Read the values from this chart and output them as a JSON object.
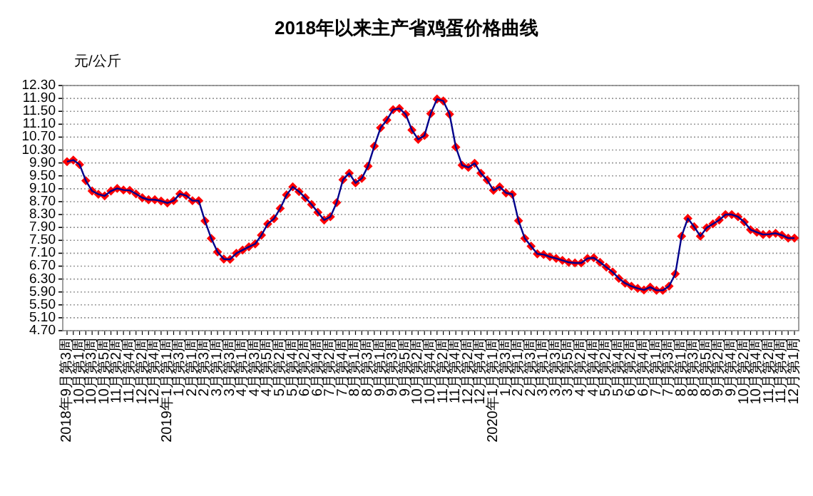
{
  "chart_data": {
    "type": "line",
    "title": "2018年以来主产省鸡蛋价格曲线",
    "ylabel": "元/公斤",
    "categories": [
      "2018年9月第3周",
      null,
      "10月第1周",
      null,
      "10月第3周",
      null,
      "10月第5周",
      null,
      "11月第2周",
      null,
      "11月第4周",
      null,
      "12月第2周",
      null,
      "12月第4周",
      null,
      "2019年1月第1周",
      null,
      "1月第3周",
      null,
      "2月第1周",
      null,
      "2月第3周",
      null,
      "3月第1周",
      null,
      "3月第3周",
      null,
      "4月第1周",
      null,
      "4月第3周",
      null,
      "4月第5周",
      null,
      "5月第2周",
      null,
      "5月第4周",
      null,
      "6月第2周",
      null,
      "6月第4周",
      null,
      "7月第2周",
      null,
      "7月第4周",
      null,
      "8月第1周",
      null,
      "8月第3周",
      null,
      "9月第1周",
      null,
      "9月第3周",
      null,
      "9月第5周",
      null,
      "10月第2周",
      null,
      "10月第4周",
      null,
      "11月第2周",
      null,
      "11月第4周",
      null,
      "12月第2周",
      null,
      "12月第4周",
      null,
      "2020年1月第1周",
      null,
      "1月第3周",
      null,
      "2月第1周",
      null,
      "2月第3周",
      null,
      "3月第1周",
      null,
      "3月第3周",
      null,
      "3月第5周",
      null,
      "4月第2周",
      null,
      "4月第4周",
      null,
      "5月第2周",
      null,
      "5月第4周",
      null,
      "6月第2周",
      null,
      "6月第4周",
      null,
      "7月第1周",
      null,
      "7月第3周",
      null,
      "8月第1周",
      null,
      "8月第3周",
      null,
      "8月第5周",
      null,
      "9月第2周",
      null,
      "9月第4周",
      null,
      "10月第2周",
      null,
      "10月第4周",
      null,
      "11月第2周",
      null,
      "11月第4周",
      null,
      "12月第1周"
    ],
    "series": [
      {
        "color": "#ff0000",
        "values": [
          9.94,
          9.99,
          9.85,
          9.35,
          9.03,
          8.93,
          8.88,
          9.03,
          9.11,
          9.06,
          9.05,
          8.94,
          8.82,
          8.76,
          8.76,
          8.72,
          8.66,
          8.73,
          8.94,
          8.89,
          8.73,
          8.73,
          8.1,
          7.56,
          7.14,
          6.92,
          6.91,
          7.1,
          7.2,
          7.3,
          7.39,
          7.66,
          8.01,
          8.17,
          8.49,
          8.91,
          9.16,
          9.01,
          8.82,
          8.61,
          8.37,
          8.13,
          8.23,
          8.67,
          9.38,
          9.58,
          9.28,
          9.42,
          9.8,
          10.42,
          10.99,
          11.23,
          11.55,
          11.59,
          11.41,
          10.92,
          10.63,
          10.75,
          11.43,
          11.88,
          11.82,
          11.41,
          10.39,
          9.83,
          9.76,
          9.89,
          9.58,
          9.37,
          9.05,
          9.16,
          8.97,
          8.93,
          8.11,
          7.56,
          7.32,
          7.08,
          7.06,
          6.99,
          6.94,
          6.88,
          6.82,
          6.8,
          6.8,
          6.94,
          6.96,
          6.82,
          6.67,
          6.52,
          6.32,
          6.17,
          6.08,
          6.01,
          5.96,
          6.05,
          5.95,
          5.95,
          6.08,
          6.46,
          7.63,
          8.18,
          7.92,
          7.63,
          7.89,
          8.01,
          8.13,
          8.3,
          8.3,
          8.23,
          8.07,
          7.83,
          7.75,
          7.68,
          7.69,
          7.72,
          7.66,
          7.57,
          7.57
        ]
      }
    ],
    "ylim": [
      4.7,
      12.3
    ],
    "yticks": [
      {
        "value": 4.7,
        "label": "4.70"
      },
      {
        "value": 5.1,
        "label": "5.10"
      },
      {
        "value": 5.5,
        "label": "5.50"
      },
      {
        "value": 5.9,
        "label": "5.90"
      },
      {
        "value": 6.3,
        "label": "6.30"
      },
      {
        "value": 6.7,
        "label": "6.70"
      },
      {
        "value": 7.1,
        "label": "7.10"
      },
      {
        "value": 7.5,
        "label": "7.50"
      },
      {
        "value": 7.9,
        "label": "7.90"
      },
      {
        "value": 8.3,
        "label": "8.30"
      },
      {
        "value": 8.7,
        "label": "8.70"
      },
      {
        "value": 9.1,
        "label": "9.10"
      },
      {
        "value": 9.5,
        "label": "9.50"
      },
      {
        "value": 9.9,
        "label": "9.90"
      },
      {
        "value": 10.3,
        "label": "10.30"
      },
      {
        "value": 10.7,
        "label": "10.70"
      },
      {
        "value": 11.1,
        "label": "11.10"
      },
      {
        "value": 11.5,
        "label": "11.50"
      },
      {
        "value": 11.9,
        "label": "11.90"
      },
      {
        "value": 12.3,
        "label": "12.30"
      }
    ],
    "grid": "y",
    "marker": "diamond",
    "line_style": "solid"
  }
}
